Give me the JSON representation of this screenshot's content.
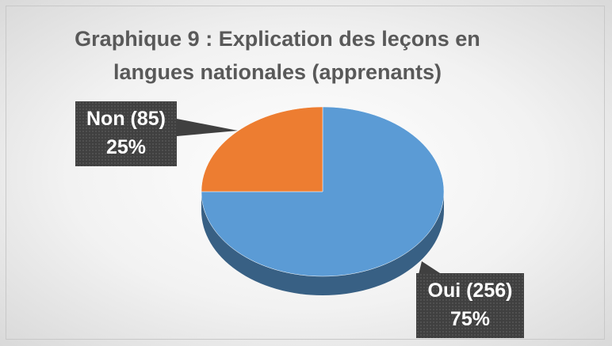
{
  "chart_data": {
    "type": "pie",
    "title": "Graphique 9 : Explication des leçons en langues nationales (apprenants)",
    "categories": [
      "Oui (256)",
      "Non (85)"
    ],
    "values": [
      75,
      25
    ],
    "value_labels": [
      "75%",
      "25%"
    ],
    "colors": [
      "#5b9bd5",
      "#ed7d31"
    ]
  }
}
